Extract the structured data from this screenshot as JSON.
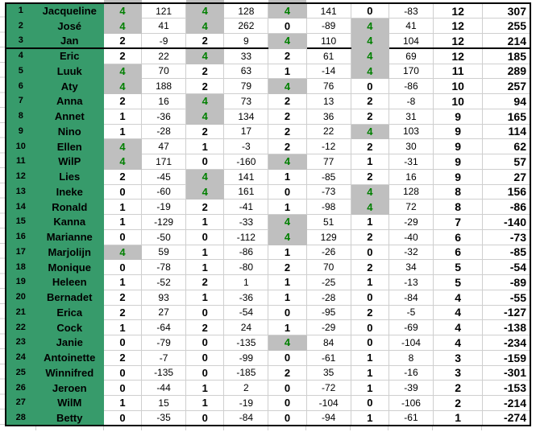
{
  "colors": {
    "green_fill": "#379B6B",
    "gray_fill": "#BFBFBF",
    "green_text": "#008000",
    "gridline": "#CFCFCF",
    "border": "#000000"
  },
  "table": {
    "highlight_score": 4,
    "thick_divider_after_rank": 3,
    "rows": [
      {
        "rank": 1,
        "name": "Jacqueline",
        "scores": [
          4,
          4,
          4,
          0
        ],
        "points": [
          121,
          128,
          141,
          -83
        ],
        "total_score": 12,
        "total_points": 307
      },
      {
        "rank": 2,
        "name": "José",
        "scores": [
          4,
          4,
          0,
          4
        ],
        "points": [
          41,
          262,
          -89,
          41
        ],
        "total_score": 12,
        "total_points": 255
      },
      {
        "rank": 3,
        "name": "Jan",
        "scores": [
          2,
          2,
          4,
          4
        ],
        "points": [
          -9,
          9,
          110,
          104
        ],
        "total_score": 12,
        "total_points": 214
      },
      {
        "rank": 4,
        "name": "Eric",
        "scores": [
          2,
          4,
          2,
          4
        ],
        "points": [
          22,
          33,
          61,
          69
        ],
        "total_score": 12,
        "total_points": 185
      },
      {
        "rank": 5,
        "name": "Luuk",
        "scores": [
          4,
          2,
          1,
          4
        ],
        "points": [
          70,
          63,
          -14,
          170
        ],
        "total_score": 11,
        "total_points": 289
      },
      {
        "rank": 6,
        "name": "Aty",
        "scores": [
          4,
          2,
          4,
          0
        ],
        "points": [
          188,
          79,
          76,
          -86
        ],
        "total_score": 10,
        "total_points": 257
      },
      {
        "rank": 7,
        "name": "Anna",
        "scores": [
          2,
          4,
          2,
          2
        ],
        "points": [
          16,
          73,
          13,
          -8
        ],
        "total_score": 10,
        "total_points": 94
      },
      {
        "rank": 8,
        "name": "Annet",
        "scores": [
          1,
          4,
          2,
          2
        ],
        "points": [
          -36,
          134,
          36,
          31
        ],
        "total_score": 9,
        "total_points": 165
      },
      {
        "rank": 9,
        "name": "Nino",
        "scores": [
          1,
          2,
          2,
          4
        ],
        "points": [
          -28,
          17,
          22,
          103
        ],
        "total_score": 9,
        "total_points": 114
      },
      {
        "rank": 10,
        "name": "Ellen",
        "scores": [
          4,
          1,
          2,
          2
        ],
        "points": [
          47,
          -3,
          -12,
          30
        ],
        "total_score": 9,
        "total_points": 62
      },
      {
        "rank": 11,
        "name": "WilP",
        "scores": [
          4,
          0,
          4,
          1
        ],
        "points": [
          171,
          -160,
          77,
          -31
        ],
        "total_score": 9,
        "total_points": 57
      },
      {
        "rank": 12,
        "name": "Lies",
        "scores": [
          2,
          4,
          1,
          2
        ],
        "points": [
          -45,
          141,
          -85,
          16
        ],
        "total_score": 9,
        "total_points": 27
      },
      {
        "rank": 13,
        "name": "Ineke",
        "scores": [
          0,
          4,
          0,
          4
        ],
        "points": [
          -60,
          161,
          -73,
          128
        ],
        "total_score": 8,
        "total_points": 156
      },
      {
        "rank": 14,
        "name": "Ronald",
        "scores": [
          1,
          2,
          1,
          4
        ],
        "points": [
          -19,
          -41,
          -98,
          72
        ],
        "total_score": 8,
        "total_points": -86
      },
      {
        "rank": 15,
        "name": "Kanna",
        "scores": [
          1,
          1,
          4,
          1
        ],
        "points": [
          -129,
          -33,
          51,
          -29
        ],
        "total_score": 7,
        "total_points": -140
      },
      {
        "rank": 16,
        "name": "Marianne",
        "scores": [
          0,
          0,
          4,
          2
        ],
        "points": [
          -50,
          -112,
          129,
          -40
        ],
        "total_score": 6,
        "total_points": -73
      },
      {
        "rank": 17,
        "name": "Marjolijn",
        "scores": [
          4,
          1,
          1,
          0
        ],
        "points": [
          59,
          -86,
          -26,
          -32
        ],
        "total_score": 6,
        "total_points": -85
      },
      {
        "rank": 18,
        "name": "Monique",
        "scores": [
          0,
          1,
          2,
          2
        ],
        "points": [
          -78,
          -80,
          70,
          34
        ],
        "total_score": 5,
        "total_points": -54
      },
      {
        "rank": 19,
        "name": "Heleen",
        "scores": [
          1,
          2,
          1,
          1
        ],
        "points": [
          -52,
          1,
          -25,
          -13
        ],
        "total_score": 5,
        "total_points": -89
      },
      {
        "rank": 20,
        "name": "Bernadet",
        "scores": [
          2,
          1,
          1,
          0
        ],
        "points": [
          93,
          -36,
          -28,
          -84
        ],
        "total_score": 4,
        "total_points": -55
      },
      {
        "rank": 21,
        "name": "Erica",
        "scores": [
          2,
          0,
          0,
          2
        ],
        "points": [
          27,
          -54,
          -95,
          -5
        ],
        "total_score": 4,
        "total_points": -127
      },
      {
        "rank": 22,
        "name": "Cock",
        "scores": [
          1,
          2,
          1,
          0
        ],
        "points": [
          -64,
          24,
          -29,
          -69
        ],
        "total_score": 4,
        "total_points": -138
      },
      {
        "rank": 23,
        "name": "Janie",
        "scores": [
          0,
          0,
          4,
          0
        ],
        "points": [
          -79,
          -135,
          84,
          -104
        ],
        "total_score": 4,
        "total_points": -234
      },
      {
        "rank": 24,
        "name": "Antoinette",
        "scores": [
          2,
          0,
          0,
          1
        ],
        "points": [
          -7,
          -99,
          -61,
          8
        ],
        "total_score": 3,
        "total_points": -159
      },
      {
        "rank": 25,
        "name": "Winnifred",
        "scores": [
          0,
          0,
          2,
          1
        ],
        "points": [
          -135,
          -185,
          35,
          -16
        ],
        "total_score": 3,
        "total_points": -301
      },
      {
        "rank": 26,
        "name": "Jeroen",
        "scores": [
          0,
          1,
          0,
          1
        ],
        "points": [
          -44,
          2,
          -72,
          -39
        ],
        "total_score": 2,
        "total_points": -153
      },
      {
        "rank": 27,
        "name": "WilM",
        "scores": [
          1,
          1,
          0,
          0
        ],
        "points": [
          15,
          -19,
          -104,
          -106
        ],
        "total_score": 2,
        "total_points": -214
      },
      {
        "rank": 28,
        "name": "Betty",
        "scores": [
          0,
          0,
          0,
          1
        ],
        "points": [
          -35,
          -84,
          -94,
          -61
        ],
        "total_score": 1,
        "total_points": -274
      }
    ]
  }
}
